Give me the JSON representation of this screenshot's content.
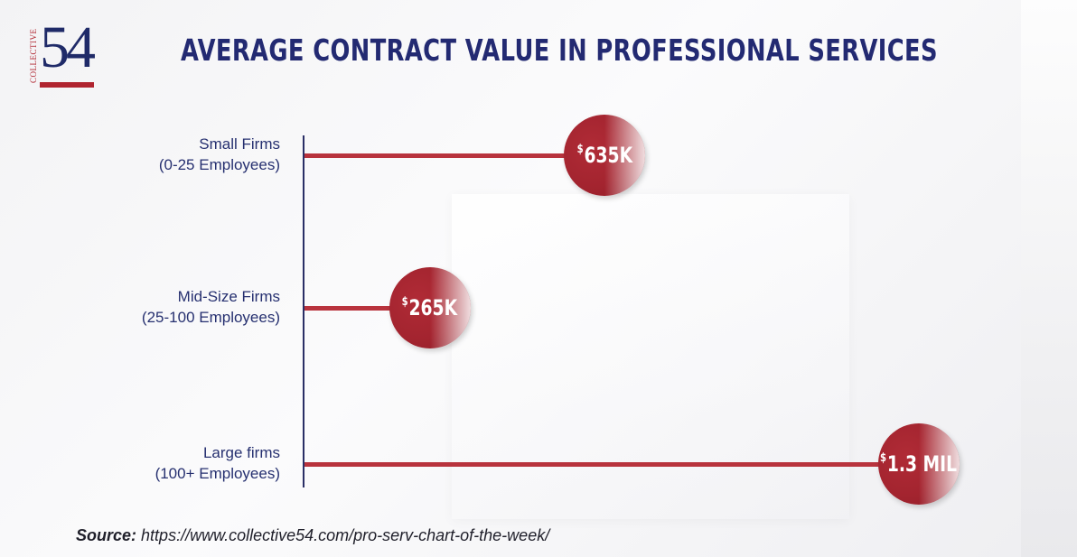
{
  "logo": {
    "side_text": "COLLECTIVE",
    "number": "54"
  },
  "title": "AVERAGE CONTRACT VALUE IN PROFESSIONAL SERVICES",
  "source": {
    "label": "Source:",
    "url": "https://www.collective54.com/pro-serv-chart-of-the-week/"
  },
  "colors": {
    "title": "#232a72",
    "bar": "#b8333d",
    "bubble": "#a3242f",
    "axis": "#2a2f66"
  },
  "chart_data": {
    "type": "bar",
    "orientation": "horizontal",
    "categories": [
      "Small Firms (0-25 Employees)",
      "Mid-Size Firms (25-100 Employees)",
      "Large firms (100+ Employees)"
    ],
    "category_lines": [
      [
        "Small Firms",
        "(0-25 Employees)"
      ],
      [
        "Mid-Size Firms",
        "(25-100 Employees)"
      ],
      [
        "Large firms",
        "(100+ Employees)"
      ]
    ],
    "values": [
      635000,
      265000,
      1300000
    ],
    "value_labels": [
      {
        "currency": "$",
        "text": "635K"
      },
      {
        "currency": "$",
        "text": "265K"
      },
      {
        "currency": "$",
        "text": "1.3 MIL"
      }
    ],
    "unit": "USD",
    "xlim": [
      0,
      1300000
    ],
    "title": "AVERAGE CONTRACT VALUE IN PROFESSIONAL SERVICES",
    "xlabel": "",
    "ylabel": "",
    "grid": false,
    "legend": "none"
  }
}
